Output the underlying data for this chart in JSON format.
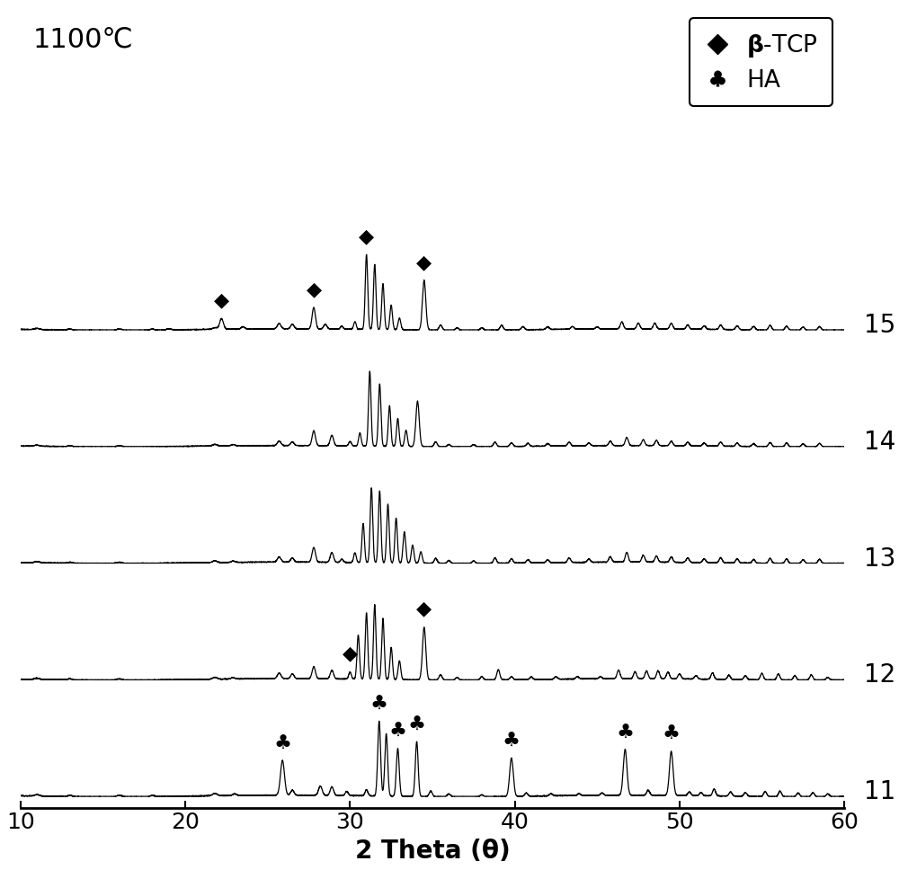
{
  "title": "1100℃",
  "xlabel": "2 Theta (θ)",
  "xlim": [
    10,
    60
  ],
  "xticks": [
    10,
    20,
    30,
    40,
    50,
    60
  ],
  "curve_labels": [
    "11",
    "12",
    "13",
    "14",
    "15"
  ],
  "background_color": "#ffffff",
  "line_color": "#000000",
  "title_fontsize": 22,
  "label_fontsize": 20,
  "tick_fontsize": 18,
  "legend_fontsize": 19,
  "curve_num_fontsize": 20
}
